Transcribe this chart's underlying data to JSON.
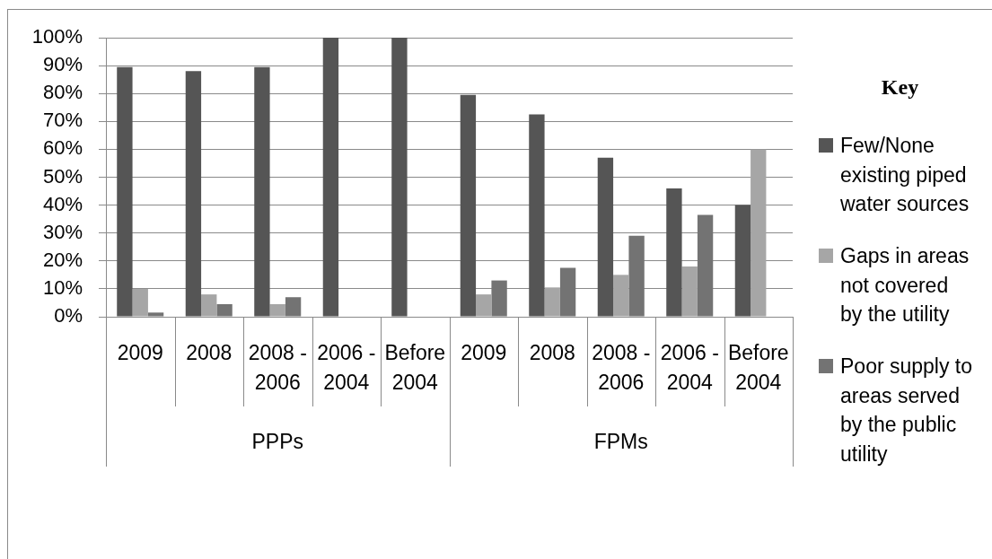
{
  "chart_data": {
    "type": "bar",
    "categories": [
      "2009",
      "2008",
      "2008 - 2006",
      "2006 - 2004",
      "Before 2004",
      "2009",
      "2008",
      "2008 - 2006",
      "2006 - 2004",
      "Before 2004"
    ],
    "series": [
      {
        "name": "Few/None existing piped water sources",
        "color": "#555555",
        "values": [
          89.5,
          88,
          89.5,
          100,
          100,
          79.5,
          72.5,
          57,
          46,
          40
        ]
      },
      {
        "name": "Gaps in areas not covered by the utility",
        "color": "#a6a6a6",
        "values": [
          10,
          8,
          4.5,
          0,
          0,
          8,
          10.5,
          15,
          18,
          60
        ]
      },
      {
        "name": "Poor supply to areas served by the public utility",
        "color": "#737373",
        "values": [
          1.5,
          4.5,
          7,
          0,
          0,
          13,
          17.5,
          29,
          36.5,
          0
        ]
      }
    ],
    "ylim": [
      0,
      100
    ],
    "yticks": [
      {
        "value": 0,
        "label": "0%"
      },
      {
        "value": 10,
        "label": "10%"
      },
      {
        "value": 20,
        "label": "20%"
      },
      {
        "value": 30,
        "label": "30%"
      },
      {
        "value": 40,
        "label": "40%"
      },
      {
        "value": 50,
        "label": "50%"
      },
      {
        "value": 60,
        "label": "60%"
      },
      {
        "value": 70,
        "label": "70%"
      },
      {
        "value": 80,
        "label": "80%"
      },
      {
        "value": 90,
        "label": "90%"
      },
      {
        "value": 100,
        "label": "100%"
      }
    ],
    "grid": "y",
    "legend": "right",
    "legend_title": "Key",
    "annotations": [
      "PPPs",
      "FPMs"
    ]
  }
}
